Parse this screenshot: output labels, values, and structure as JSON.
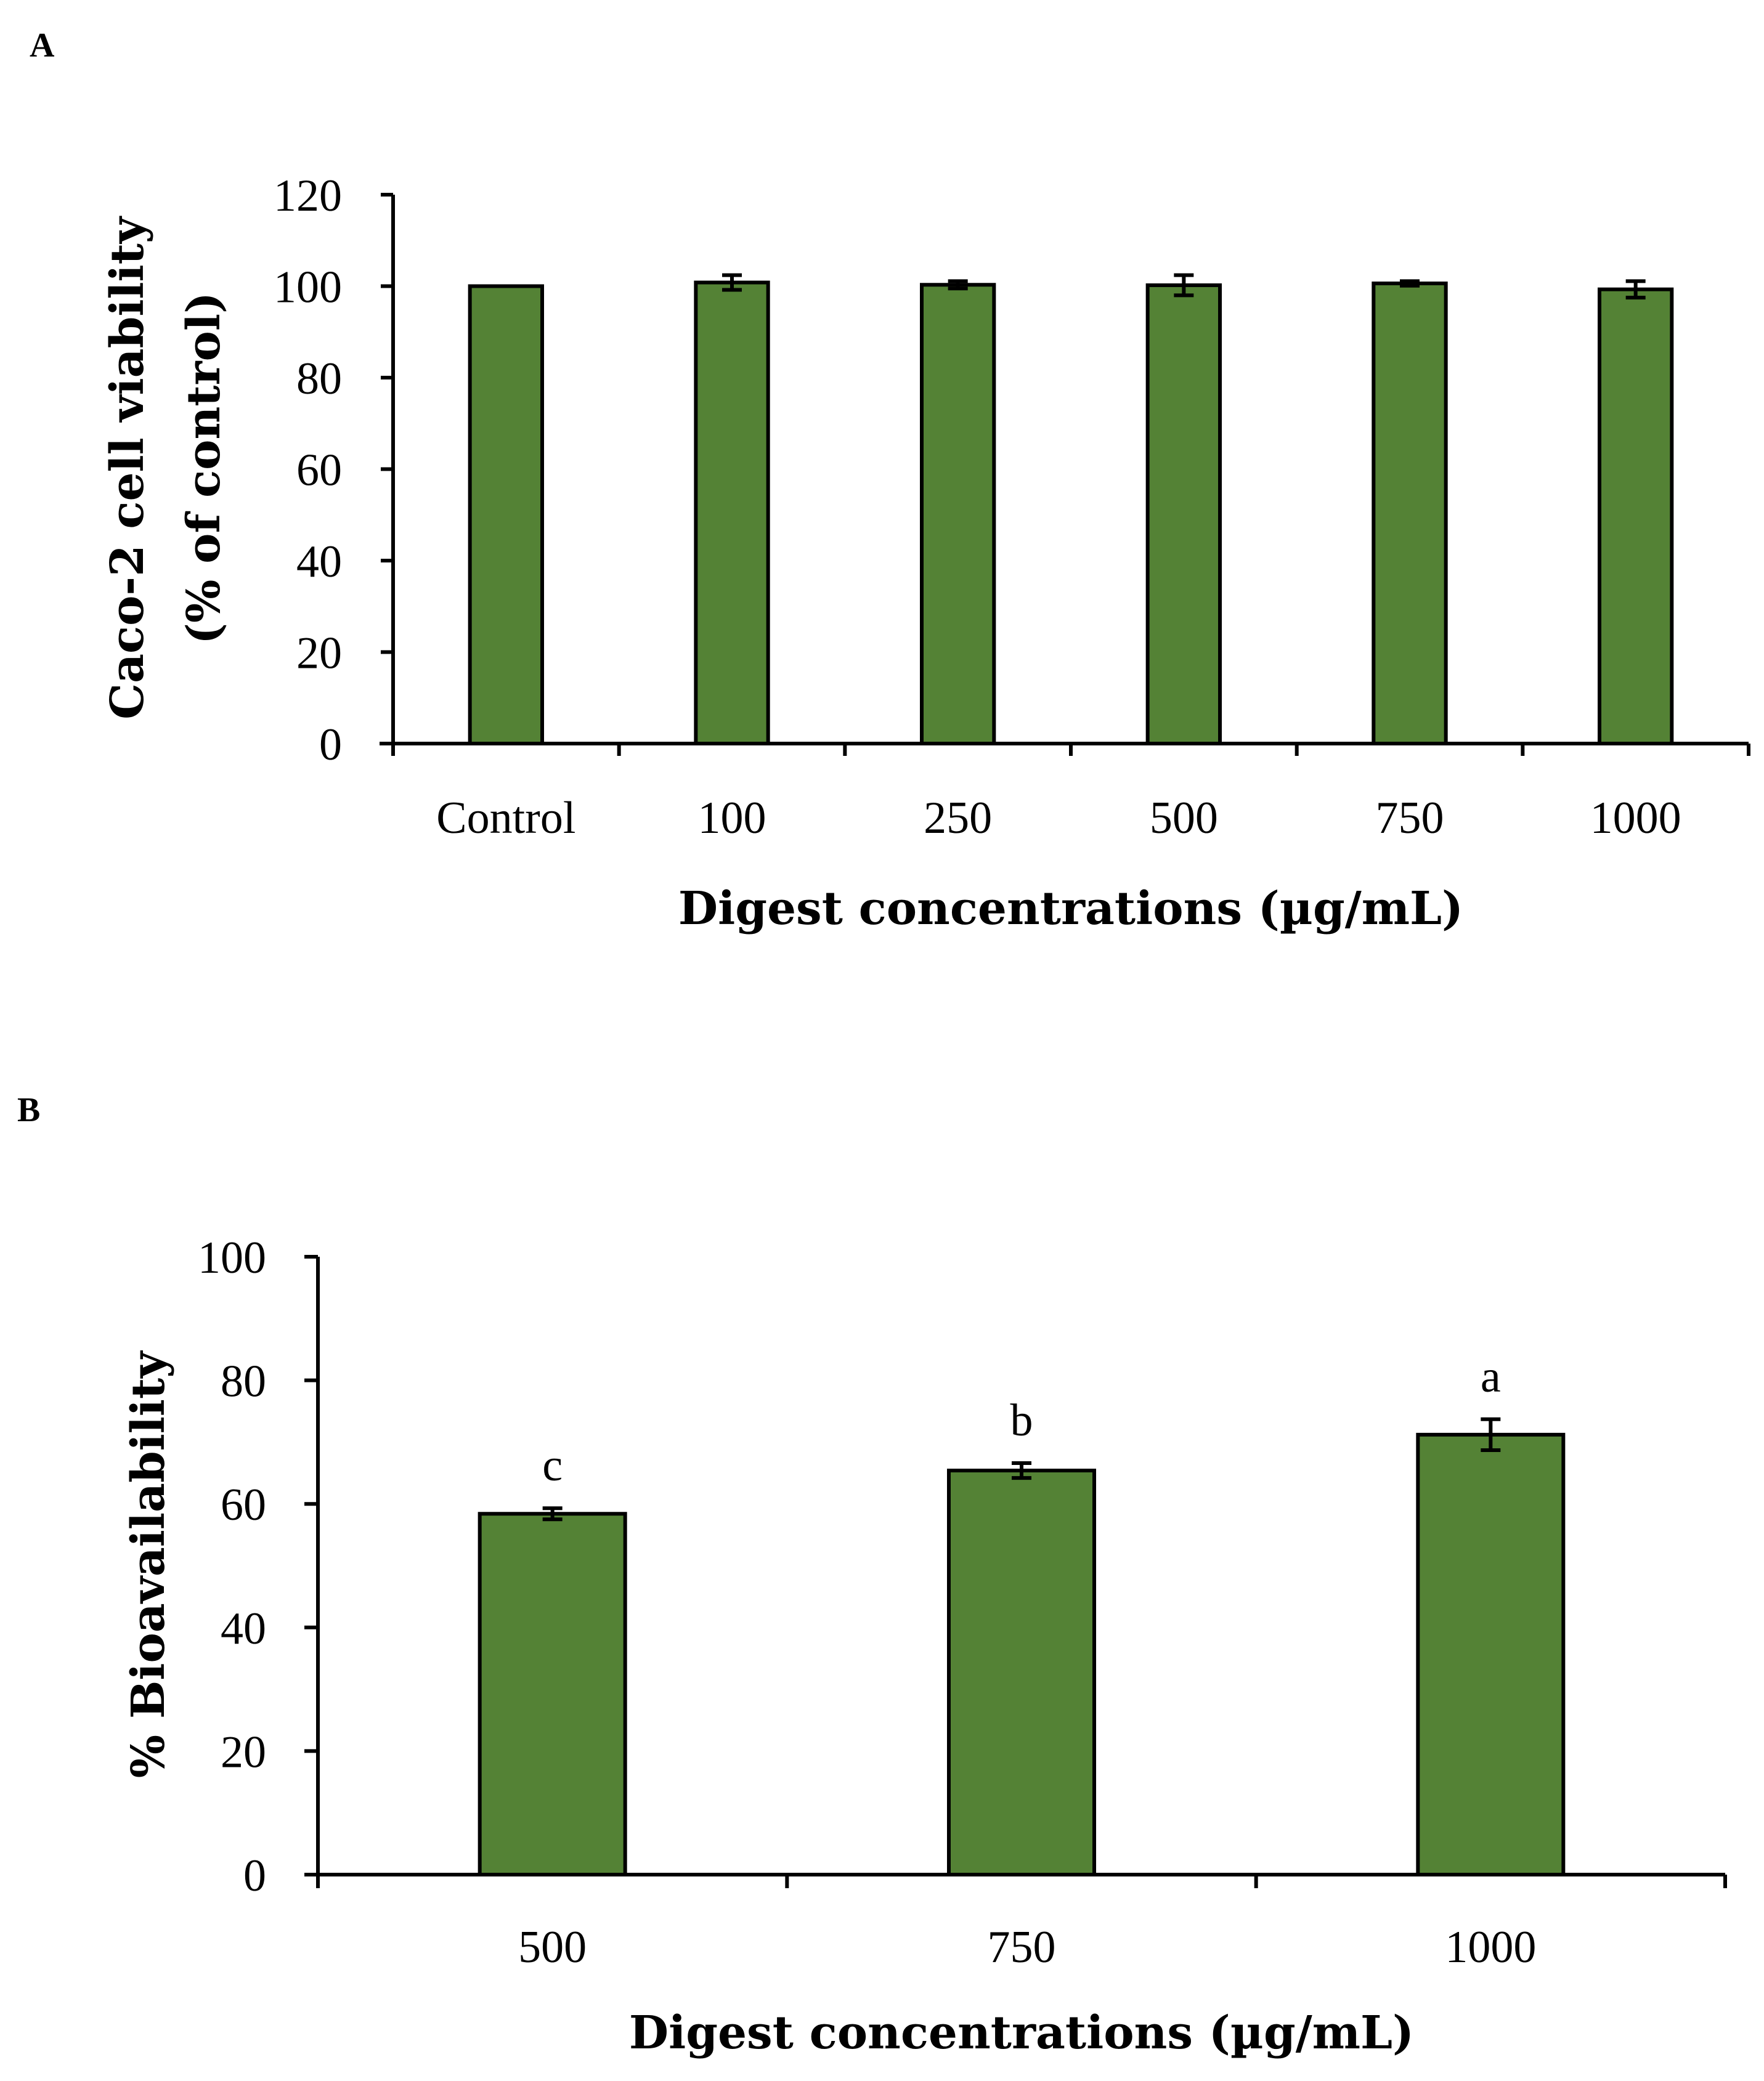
{
  "chart_data": [
    {
      "panel": "A",
      "type": "bar",
      "categories": [
        "Control",
        "100",
        "250",
        "500",
        "750",
        "1000"
      ],
      "values": [
        100,
        100.8,
        100.3,
        100.2,
        100.6,
        99.3
      ],
      "errors": [
        0,
        1.6,
        0.8,
        2.2,
        0.5,
        1.8
      ],
      "significance": [
        "",
        "",
        "",
        "",
        "",
        ""
      ],
      "ylim": [
        0,
        120
      ],
      "yticks": [
        "0",
        "20",
        "40",
        "60",
        "80",
        "100",
        "120"
      ],
      "xlabel": "Digest concentrations (µg/mL)",
      "ylabel_line1": "Caco-2 cell viability",
      "ylabel_line2": "(% of control)",
      "bar_color": "#548235"
    },
    {
      "panel": "B",
      "type": "bar",
      "categories": [
        "500",
        "750",
        "1000"
      ],
      "values": [
        58.4,
        65.4,
        71.2
      ],
      "errors": [
        0.9,
        1.2,
        2.5
      ],
      "significance": [
        "c",
        "b",
        "a"
      ],
      "ylim": [
        0,
        100
      ],
      "yticks": [
        "0",
        "20",
        "40",
        "60",
        "80",
        "100"
      ],
      "xlabel": "Digest concentrations (µg/mL)",
      "ylabel": "% Bioavailability",
      "bar_color": "#548235"
    }
  ]
}
